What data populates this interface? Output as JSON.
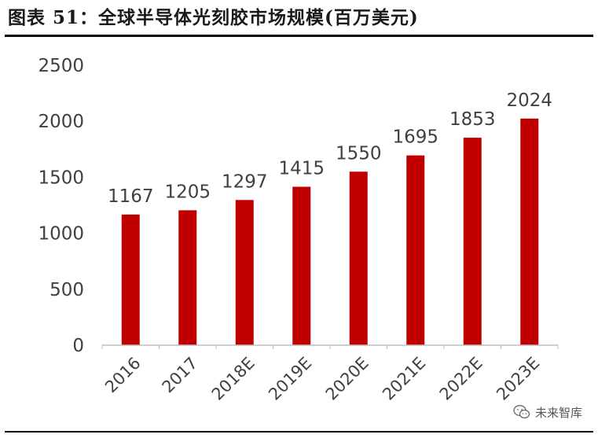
{
  "figure": {
    "title": "图表 51：全球半导体光刻胶市场规模(百万美元)"
  },
  "watermark": {
    "text": "未来智库",
    "icon": "wechat-icon"
  },
  "chart_data": {
    "type": "bar",
    "categories": [
      "2016",
      "2017",
      "2018E",
      "2019E",
      "2020E",
      "2021E",
      "2022E",
      "2023E"
    ],
    "values": [
      1167,
      1205,
      1297,
      1415,
      1550,
      1695,
      1853,
      2024
    ],
    "ylim": [
      0,
      2500
    ],
    "yticks": [
      0,
      500,
      1000,
      1500,
      2000,
      2500
    ],
    "title": "",
    "xlabel": "",
    "ylabel": "",
    "grid": false,
    "legend": "none",
    "bar_color": "#c00000",
    "data_labels": true,
    "x_tick_rotation": "-45"
  }
}
